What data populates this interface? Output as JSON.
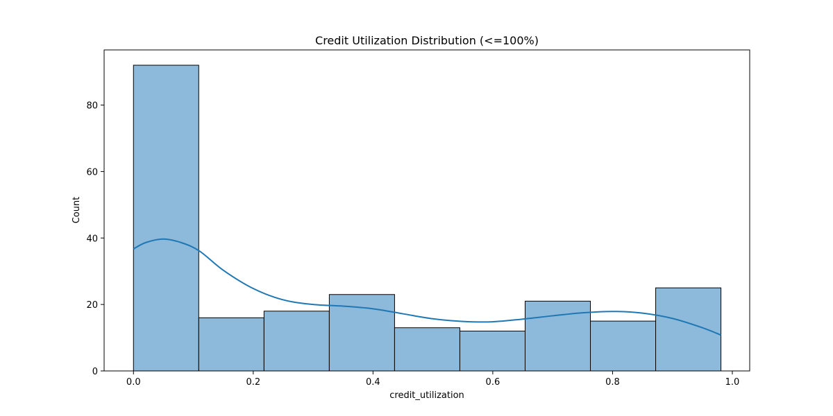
{
  "chart_data": {
    "type": "bar",
    "title": "Credit Utilization Distribution (<=100%)",
    "xlabel": "credit_utilization",
    "ylabel": "Count",
    "xlim": [
      -0.049,
      1.029
    ],
    "ylim": [
      0,
      96.6
    ],
    "grid": false,
    "legend": "none",
    "x_ticks": [
      0.0,
      0.2,
      0.4,
      0.6,
      0.8,
      1.0
    ],
    "x_tick_labels": [
      "0.0",
      "0.2",
      "0.4",
      "0.6",
      "0.8",
      "1.0"
    ],
    "y_ticks": [
      0,
      20,
      40,
      60,
      80
    ],
    "y_tick_labels": [
      "0",
      "20",
      "40",
      "60",
      "80"
    ],
    "bins": [
      {
        "start": 0.0,
        "end": 0.109,
        "count": 92
      },
      {
        "start": 0.109,
        "end": 0.218,
        "count": 16
      },
      {
        "start": 0.218,
        "end": 0.327,
        "count": 18
      },
      {
        "start": 0.327,
        "end": 0.436,
        "count": 23
      },
      {
        "start": 0.436,
        "end": 0.545,
        "count": 13
      },
      {
        "start": 0.545,
        "end": 0.654,
        "count": 12
      },
      {
        "start": 0.654,
        "end": 0.763,
        "count": 21
      },
      {
        "start": 0.763,
        "end": 0.872,
        "count": 15
      },
      {
        "start": 0.872,
        "end": 0.981,
        "count": 25
      }
    ],
    "kde": {
      "x": [
        0.0,
        0.02,
        0.05,
        0.08,
        0.11,
        0.15,
        0.2,
        0.25,
        0.3,
        0.35,
        0.4,
        0.45,
        0.5,
        0.55,
        0.6,
        0.65,
        0.7,
        0.75,
        0.8,
        0.85,
        0.9,
        0.95,
        0.981
      ],
      "y": [
        36.7,
        38.6,
        39.7,
        38.6,
        36.1,
        30.3,
        24.8,
        21.4,
        20.0,
        19.5,
        18.7,
        17.2,
        15.7,
        14.9,
        14.8,
        15.6,
        16.6,
        17.5,
        17.9,
        17.4,
        15.8,
        13.0,
        10.8
      ]
    },
    "colors": {
      "bar_fill": "#8db9da",
      "bar_edge": "#000000",
      "kde_line": "#1f77b4",
      "axes": "#000000"
    }
  }
}
